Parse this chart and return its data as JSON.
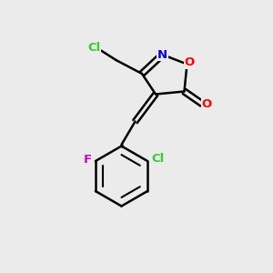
{
  "bg_color": "#ebebeb",
  "line_color": "#000000",
  "bond_lw": 1.8,
  "atom_colors": {
    "Cl": "#32cd32",
    "N": "#0000cd",
    "O": "#ff0000",
    "F": "#cc00cc"
  },
  "figsize": [
    3.0,
    3.0
  ],
  "dpi": 100
}
